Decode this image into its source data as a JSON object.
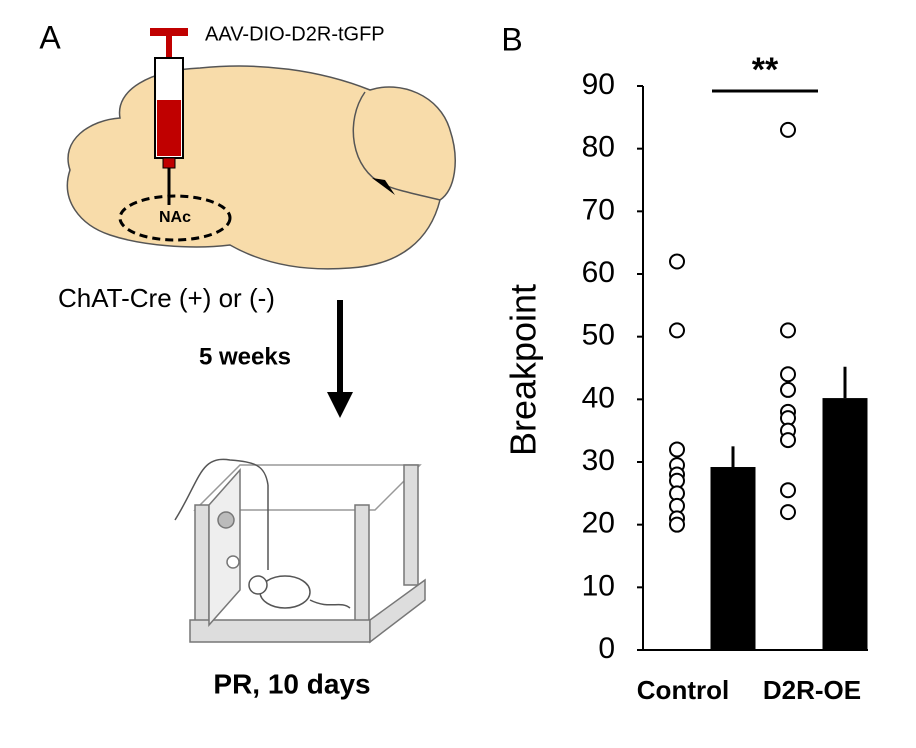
{
  "figure_a": {
    "label": "A",
    "injection": "AAV-DIO-D2R-tGFP",
    "region": "NAc",
    "genotype": "ChAT-Cre (+) or (-)",
    "interval": "5 weeks",
    "test": "PR, 10 days"
  },
  "chart_data": {
    "type": "bar",
    "label": "B",
    "ylabel": "Breakpoint",
    "annotation": "**",
    "categories": [
      "Control",
      "D2R-OE"
    ],
    "values": [
      29.2,
      40.2
    ],
    "errors": [
      3.3,
      5.0
    ],
    "color": "#000000",
    "points": [
      [
        62,
        51,
        32,
        29.5,
        28,
        27,
        25,
        23,
        21,
        20
      ],
      [
        83,
        51,
        44,
        41.5,
        38,
        37,
        35,
        33.5,
        25.5,
        22
      ]
    ],
    "ylim": [
      0,
      90
    ],
    "yticks": [
      0,
      10,
      20,
      30,
      40,
      50,
      60,
      70,
      80,
      90
    ],
    "grid": false
  }
}
